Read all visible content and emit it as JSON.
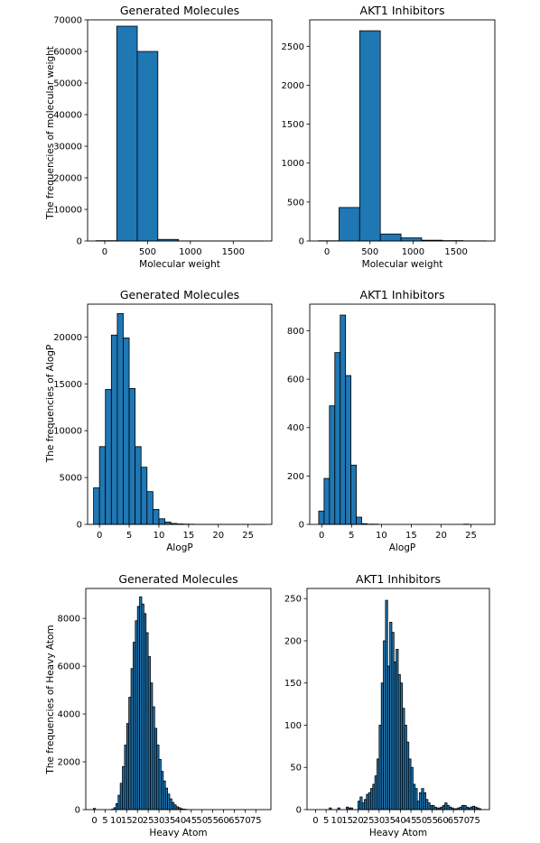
{
  "ylabels": {
    "row1": "The frequencies of molecular weight",
    "row2": "The frequencies of AlogP",
    "row3": "The frequencies of Heavy Atom"
  },
  "chart_data": [
    {
      "id": "mw-generated",
      "type": "bar",
      "title": "Generated Molecules",
      "xlabel": "Molecular weight",
      "ylabel": "The frequencies of molecular weight",
      "xlim": [
        -200,
        1950
      ],
      "ylim": [
        0,
        70000
      ],
      "xticks": [
        0,
        500,
        1000,
        1500
      ],
      "yticks": [
        0,
        10000,
        20000,
        30000,
        40000,
        50000,
        60000,
        70000
      ],
      "bins": [
        {
          "x0": -100,
          "x1": 140,
          "count": 100
        },
        {
          "x0": 140,
          "x1": 380,
          "count": 68000
        },
        {
          "x0": 380,
          "x1": 620,
          "count": 60000
        },
        {
          "x0": 620,
          "x1": 860,
          "count": 500
        },
        {
          "x0": 860,
          "x1": 1100,
          "count": 30
        },
        {
          "x0": 1100,
          "x1": 1340,
          "count": 10
        },
        {
          "x0": 1340,
          "x1": 1580,
          "count": 5
        },
        {
          "x0": 1580,
          "x1": 1850,
          "count": 2
        }
      ]
    },
    {
      "id": "mw-akt1",
      "type": "bar",
      "title": "AKT1 Inhibitors",
      "xlabel": "Molecular weight",
      "ylabel": "",
      "xlim": [
        -200,
        1950
      ],
      "ylim": [
        0,
        2840
      ],
      "xticks": [
        0,
        500,
        1000,
        1500
      ],
      "yticks": [
        0,
        500,
        1000,
        1500,
        2000,
        2500
      ],
      "bins": [
        {
          "x0": -100,
          "x1": 140,
          "count": 3
        },
        {
          "x0": 140,
          "x1": 380,
          "count": 430
        },
        {
          "x0": 380,
          "x1": 620,
          "count": 2700
        },
        {
          "x0": 620,
          "x1": 860,
          "count": 90
        },
        {
          "x0": 860,
          "x1": 1100,
          "count": 40
        },
        {
          "x0": 1100,
          "x1": 1340,
          "count": 10
        },
        {
          "x0": 1340,
          "x1": 1580,
          "count": 5
        },
        {
          "x0": 1580,
          "x1": 1850,
          "count": 2
        }
      ]
    },
    {
      "id": "alogp-generated",
      "type": "bar",
      "title": "Generated Molecules",
      "xlabel": "AlogP",
      "ylabel": "The frequencies of AlogP",
      "xlim": [
        -2,
        29
      ],
      "ylim": [
        0,
        23500
      ],
      "xticks": [
        0,
        5,
        10,
        15,
        20,
        25
      ],
      "yticks": [
        0,
        5000,
        10000,
        15000,
        20000
      ],
      "binStart": -1,
      "binWidth": 1,
      "counts": [
        3900,
        8300,
        14400,
        20200,
        22500,
        19900,
        14500,
        8300,
        6100,
        3500,
        1600,
        600,
        250,
        100,
        50,
        30,
        20,
        10,
        5,
        5,
        3,
        2,
        2,
        1,
        1,
        1,
        1,
        1,
        1
      ]
    },
    {
      "id": "alogp-akt1",
      "type": "bar",
      "title": "AKT1 Inhibitors",
      "xlabel": "AlogP",
      "ylabel": "",
      "xlim": [
        -2,
        29
      ],
      "ylim": [
        0,
        910
      ],
      "xticks": [
        0,
        5,
        10,
        15,
        20,
        25
      ],
      "yticks": [
        0,
        200,
        400,
        600,
        800
      ],
      "binStart": -0.5,
      "binWidth": 0.9,
      "counts": [
        55,
        190,
        490,
        710,
        865,
        615,
        245,
        30,
        3,
        1,
        1,
        0,
        0,
        0,
        0,
        0,
        0,
        0,
        0,
        0,
        0,
        0,
        0,
        0,
        0,
        0,
        0,
        1,
        0,
        0,
        0,
        0
      ]
    },
    {
      "id": "heavy-generated",
      "type": "bar",
      "title": "Generated Molecules",
      "xlabel": "Heavy Atom",
      "ylabel": "The frequencies of Heavy Atom",
      "xlim": [
        -4,
        82
      ],
      "ylim": [
        0,
        9250
      ],
      "xticks": [
        0,
        5,
        10,
        15,
        20,
        25,
        30,
        35,
        40,
        45,
        50,
        55,
        60,
        65,
        70,
        75
      ],
      "xticklabels": [
        "0",
        "5",
        "10",
        "15",
        "20",
        "25",
        "30",
        "35",
        "40",
        "45",
        "50",
        "55",
        "60",
        "65",
        "70",
        "75"
      ],
      "yticks": [
        0,
        2000,
        4000,
        6000,
        8000
      ],
      "binStart": 8,
      "binWidth": 1,
      "counts": [
        20,
        80,
        250,
        600,
        1100,
        1800,
        2700,
        3600,
        4700,
        5900,
        7000,
        7900,
        8500,
        8900,
        8600,
        8200,
        7400,
        6400,
        5300,
        4300,
        3400,
        2700,
        2100,
        1600,
        1200,
        900,
        650,
        450,
        300,
        200,
        120,
        80,
        40,
        20,
        10
      ],
      "extra": [
        {
          "x": 0,
          "count": 50
        }
      ]
    },
    {
      "id": "heavy-akt1",
      "type": "bar",
      "title": "AKT1 Inhibitors",
      "xlabel": "Heavy Atom",
      "ylabel": "",
      "xlim": [
        -4,
        82
      ],
      "ylim": [
        0,
        262
      ],
      "xticks": [
        0,
        5,
        10,
        15,
        20,
        25,
        30,
        35,
        40,
        45,
        50,
        55,
        60,
        65,
        70,
        75
      ],
      "xticklabels": [
        "0",
        "5",
        "10",
        "15",
        "20",
        "25",
        "30",
        "35",
        "40",
        "45",
        "50",
        "55",
        "60",
        "65",
        "70",
        "75"
      ],
      "yticks": [
        0,
        50,
        100,
        150,
        200,
        250
      ],
      "binStart": 20,
      "binWidth": 1,
      "counts": [
        10,
        15,
        8,
        12,
        18,
        20,
        25,
        30,
        40,
        60,
        100,
        150,
        200,
        248,
        170,
        222,
        210,
        175,
        190,
        160,
        150,
        120,
        100,
        80,
        60,
        50,
        30,
        25,
        10,
        20,
        25,
        20,
        12,
        8,
        5,
        5,
        3,
        2,
        2,
        3,
        5,
        8,
        5,
        3,
        2,
        1,
        1,
        2,
        3,
        5,
        5,
        3,
        2,
        3,
        4,
        3,
        2,
        1
      ],
      "extra": [
        {
          "x": 7,
          "count": 2
        },
        {
          "x": 11,
          "count": 2
        },
        {
          "x": 15,
          "count": 3
        },
        {
          "x": 16,
          "count": 2
        },
        {
          "x": 17,
          "count": 2
        }
      ]
    }
  ]
}
